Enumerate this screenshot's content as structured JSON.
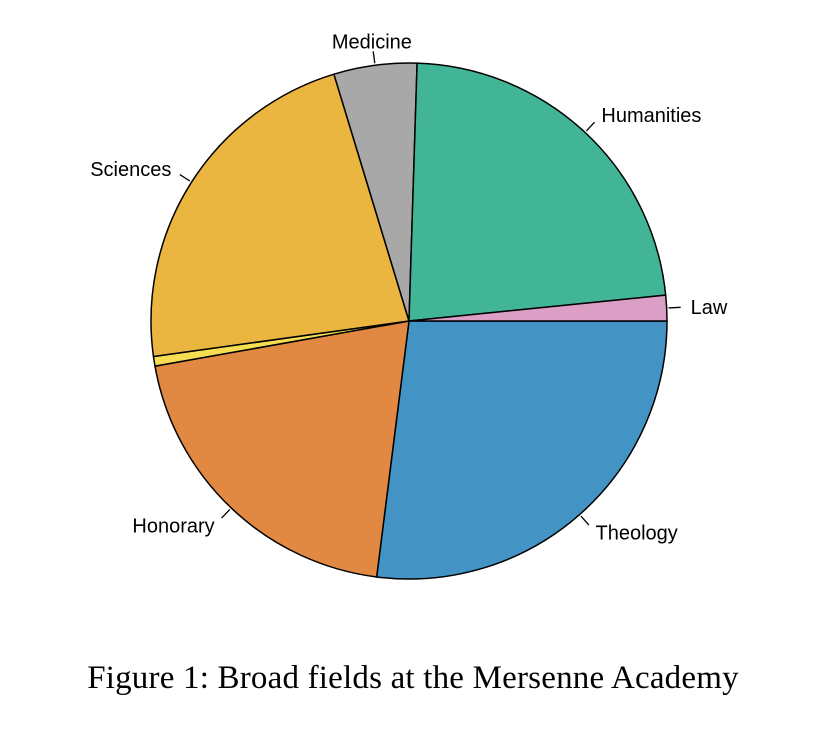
{
  "caption": "Figure 1: Broad fields at the Mersenne Academy",
  "chart_data": {
    "type": "pie",
    "title": "",
    "start": "90 degrees, counterclockwise",
    "slices": [
      {
        "label": "Theology",
        "value": 27.0,
        "color": "#4394c5"
      },
      {
        "label": "Honorary",
        "value": 20.2,
        "color": "#e18843"
      },
      {
        "label": "",
        "value": 0.6,
        "color": "#f5de51"
      },
      {
        "label": "Sciences",
        "value": 22.5,
        "color": "#ebb640"
      },
      {
        "label": "Medicine",
        "value": 5.2,
        "color": "#a8a8a8"
      },
      {
        "label": "Humanities",
        "value": 22.9,
        "color": "#41b595"
      },
      {
        "label": "Law",
        "value": 1.6,
        "color": "#db9fc6"
      }
    ]
  }
}
